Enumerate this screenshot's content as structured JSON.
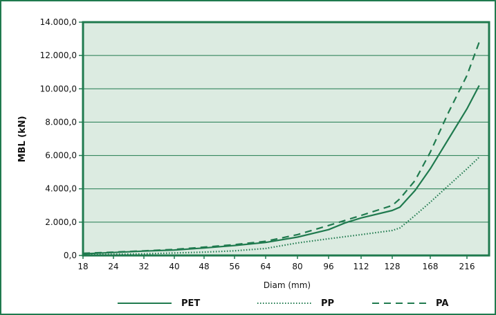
{
  "chart_data": {
    "type": "line",
    "xlabel": "Diam (mm)",
    "ylabel": "MBL (kN)",
    "x_ticks": [
      "18",
      "24",
      "32",
      "40",
      "48",
      "56",
      "64",
      "80",
      "96",
      "112",
      "128",
      "168",
      "216"
    ],
    "y_ticks": [
      "0,0",
      "2.000,0",
      "4.000,0",
      "6.000,0",
      "8.000,0",
      "10.000,0",
      "12.000,0",
      "14.000,0"
    ],
    "ylim": [
      0,
      14000
    ],
    "x_scale": "categorical (uneven diameter steps)",
    "grid": "horizontal",
    "legend_position": "bottom",
    "plot_background": "#dcebe1",
    "line_color": "#1f7a4e",
    "series": [
      {
        "name": "PET",
        "style": "solid",
        "points": [
          [
            18,
            100
          ],
          [
            24,
            180
          ],
          [
            32,
            260
          ],
          [
            40,
            330
          ],
          [
            48,
            450
          ],
          [
            56,
            600
          ],
          [
            64,
            780
          ],
          [
            80,
            1100
          ],
          [
            96,
            1550
          ],
          [
            104,
            1950
          ],
          [
            112,
            2250
          ],
          [
            128,
            2700
          ],
          [
            136,
            2900
          ],
          [
            152,
            3900
          ],
          [
            168,
            5200
          ],
          [
            192,
            7000
          ],
          [
            216,
            8800
          ],
          [
            232,
            10200
          ]
        ]
      },
      {
        "name": "PP",
        "style": "dotted",
        "points": [
          [
            18,
            30
          ],
          [
            24,
            70
          ],
          [
            32,
            100
          ],
          [
            40,
            150
          ],
          [
            48,
            200
          ],
          [
            56,
            280
          ],
          [
            64,
            420
          ],
          [
            80,
            750
          ],
          [
            96,
            1000
          ],
          [
            112,
            1250
          ],
          [
            128,
            1500
          ],
          [
            136,
            1650
          ],
          [
            152,
            2400
          ],
          [
            168,
            3200
          ],
          [
            192,
            4200
          ],
          [
            216,
            5200
          ],
          [
            232,
            5900
          ]
        ]
      },
      {
        "name": "PA",
        "style": "dashed",
        "points": [
          [
            18,
            130
          ],
          [
            24,
            200
          ],
          [
            32,
            280
          ],
          [
            40,
            360
          ],
          [
            48,
            500
          ],
          [
            56,
            650
          ],
          [
            64,
            850
          ],
          [
            80,
            1250
          ],
          [
            96,
            1800
          ],
          [
            112,
            2400
          ],
          [
            128,
            3000
          ],
          [
            136,
            3400
          ],
          [
            152,
            4500
          ],
          [
            168,
            6200
          ],
          [
            192,
            8600
          ],
          [
            216,
            10800
          ],
          [
            232,
            12800
          ]
        ]
      }
    ]
  }
}
